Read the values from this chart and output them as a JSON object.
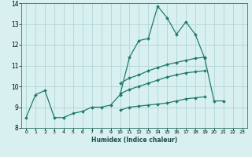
{
  "xlabel": "Humidex (Indice chaleur)",
  "ylabel": "",
  "x": [
    0,
    1,
    2,
    3,
    4,
    5,
    6,
    7,
    8,
    9,
    10,
    11,
    12,
    13,
    14,
    15,
    16,
    17,
    18,
    19,
    20,
    21,
    22,
    23
  ],
  "line_main": [
    8.5,
    9.6,
    9.8,
    8.5,
    8.5,
    8.7,
    8.8,
    9.0,
    9.0,
    9.1,
    9.6,
    11.4,
    12.2,
    12.3,
    13.85,
    13.3,
    12.5,
    13.1,
    12.5,
    11.35,
    9.3,
    9.3,
    null,
    null
  ],
  "line_top": [
    null,
    null,
    null,
    null,
    null,
    null,
    null,
    null,
    null,
    null,
    10.15,
    10.4,
    10.55,
    10.75,
    10.9,
    11.05,
    11.15,
    11.25,
    11.35,
    11.4,
    null,
    null,
    null,
    null
  ],
  "line_mid": [
    null,
    null,
    null,
    null,
    null,
    null,
    null,
    null,
    null,
    null,
    9.65,
    9.85,
    10.0,
    10.15,
    10.3,
    10.45,
    10.55,
    10.65,
    10.7,
    10.75,
    null,
    null,
    null,
    null
  ],
  "line_bot": [
    null,
    null,
    null,
    null,
    null,
    null,
    null,
    null,
    null,
    null,
    8.85,
    9.0,
    9.05,
    9.1,
    9.15,
    9.2,
    9.3,
    9.4,
    9.45,
    9.5,
    null,
    null,
    null,
    null
  ],
  "color": "#1f7a6e",
  "bg_color": "#d8f0f0",
  "grid_color": "#aacfcf",
  "ylim": [
    8.0,
    14.0
  ],
  "xlim": [
    -0.5,
    23.5
  ],
  "yticks": [
    8,
    9,
    10,
    11,
    12,
    13,
    14
  ],
  "xticks": [
    0,
    1,
    2,
    3,
    4,
    5,
    6,
    7,
    8,
    9,
    10,
    11,
    12,
    13,
    14,
    15,
    16,
    17,
    18,
    19,
    20,
    21,
    22,
    23
  ],
  "markersize": 2.0,
  "linewidth": 0.9
}
